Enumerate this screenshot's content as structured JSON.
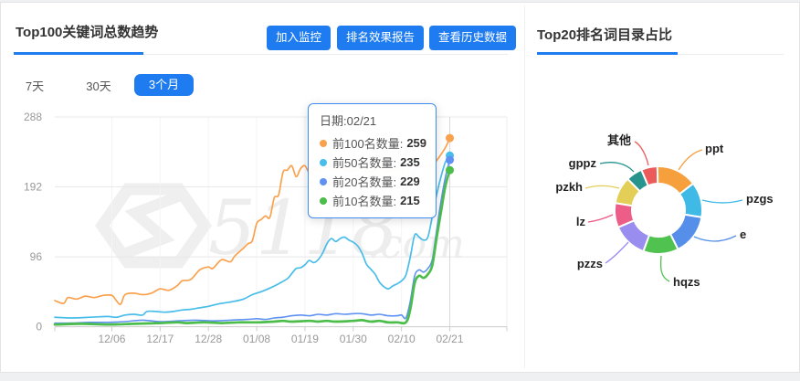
{
  "left_panel": {
    "title": "Top100关键词总数趋势",
    "buttons": [
      "加入监控",
      "排名效果报告",
      "查看历史数据"
    ],
    "tabs": [
      {
        "label": "7天",
        "active": false
      },
      {
        "label": "30天",
        "active": false
      },
      {
        "label": "3个月",
        "active": true
      }
    ],
    "watermark": "5118.com"
  },
  "right_panel": {
    "title": "Top20排名词目录占比"
  },
  "tooltip": {
    "title": "日期:02/21",
    "rows": [
      {
        "label": "前100名数量:",
        "value": "259",
        "color": "#faa14e"
      },
      {
        "label": "前50名数量:",
        "value": "235",
        "color": "#49bdea"
      },
      {
        "label": "前20名数量:",
        "value": "229",
        "color": "#5e91f2"
      },
      {
        "label": "前10名数量:",
        "value": "215",
        "color": "#4cbd4b"
      }
    ]
  },
  "colors": {
    "accent_blue": "#1f7cf0",
    "tooltip_border": "#3f8cf2"
  },
  "chart_data": [
    {
      "type": "line",
      "title": "Top100关键词总数趋势",
      "xlabel": "",
      "ylabel": "",
      "ylim": [
        0,
        288
      ],
      "y_ticks": [
        0,
        96,
        192,
        288
      ],
      "x_tick_labels": [
        "12/06",
        "12/17",
        "12/28",
        "01/08",
        "01/19",
        "01/30",
        "02/10",
        "02/21"
      ],
      "x_tick_days": [
        13,
        24,
        35,
        46,
        57,
        68,
        79,
        90
      ],
      "x_day_range": [
        0,
        103
      ],
      "hover_day": 90,
      "grid": true,
      "legend_position": "none",
      "series": [
        {
          "name": "前100名数量",
          "color": "#faa14e",
          "width": 1.7,
          "final_value": 259,
          "points": [
            [
              0,
              36
            ],
            [
              2,
              32
            ],
            [
              3,
              40
            ],
            [
              5,
              38
            ],
            [
              7,
              42
            ],
            [
              9,
              40
            ],
            [
              11,
              43
            ],
            [
              13,
              43
            ],
            [
              14,
              36
            ],
            [
              15,
              31
            ],
            [
              16,
              44
            ],
            [
              18,
              46
            ],
            [
              20,
              44
            ],
            [
              22,
              46
            ],
            [
              24,
              52
            ],
            [
              26,
              50
            ],
            [
              28,
              57
            ],
            [
              29,
              63
            ],
            [
              31,
              65
            ],
            [
              33,
              78
            ],
            [
              35,
              82
            ],
            [
              36,
              80
            ],
            [
              38,
              92
            ],
            [
              40,
              89
            ],
            [
              41,
              97
            ],
            [
              43,
              108
            ],
            [
              44,
              114
            ],
            [
              45,
              118
            ],
            [
              46,
              142
            ],
            [
              47,
              147
            ],
            [
              48,
              152
            ],
            [
              49,
              150
            ],
            [
              50,
              177
            ],
            [
              51,
              181
            ],
            [
              52,
              212
            ],
            [
              53,
              215
            ],
            [
              54,
              221
            ],
            [
              55,
              206
            ],
            [
              56,
              217
            ],
            [
              57,
              221
            ],
            [
              58,
              211
            ],
            [
              59,
              216
            ],
            [
              61,
              214
            ],
            [
              62,
              221
            ],
            [
              63,
              216
            ],
            [
              65,
              218
            ],
            [
              67,
              214
            ],
            [
              69,
              216
            ],
            [
              70,
              223
            ],
            [
              71,
              213
            ],
            [
              73,
              216
            ],
            [
              74,
              229
            ],
            [
              75,
              214
            ],
            [
              77,
              215
            ],
            [
              79,
              218
            ],
            [
              80,
              192
            ],
            [
              81,
              190
            ],
            [
              82,
              216
            ],
            [
              84,
              219
            ],
            [
              86,
              222
            ],
            [
              87,
              228
            ],
            [
              89,
              246
            ],
            [
              90,
              259
            ]
          ]
        },
        {
          "name": "前50名数量",
          "color": "#49bdea",
          "width": 1.7,
          "final_value": 235,
          "points": [
            [
              0,
              13
            ],
            [
              4,
              12
            ],
            [
              8,
              13
            ],
            [
              12,
              14
            ],
            [
              14,
              13
            ],
            [
              16,
              16
            ],
            [
              18,
              17
            ],
            [
              20,
              16
            ],
            [
              21,
              21
            ],
            [
              23,
              21
            ],
            [
              25,
              20
            ],
            [
              27,
              21
            ],
            [
              29,
              23
            ],
            [
              31,
              24
            ],
            [
              33,
              26
            ],
            [
              35,
              28
            ],
            [
              37,
              31
            ],
            [
              39,
              33
            ],
            [
              41,
              35
            ],
            [
              43,
              38
            ],
            [
              45,
              44
            ],
            [
              47,
              48
            ],
            [
              49,
              53
            ],
            [
              51,
              59
            ],
            [
              53,
              66
            ],
            [
              54,
              73
            ],
            [
              55,
              80
            ],
            [
              56,
              81
            ],
            [
              57,
              85
            ],
            [
              58,
              91
            ],
            [
              59,
              88
            ],
            [
              60,
              92
            ],
            [
              61,
              101
            ],
            [
              62,
              114
            ],
            [
              63,
              121
            ],
            [
              64,
              117
            ],
            [
              65,
              121
            ],
            [
              66,
              123
            ],
            [
              67,
              119
            ],
            [
              68,
              116
            ],
            [
              69,
              111
            ],
            [
              70,
              101
            ],
            [
              71,
              86
            ],
            [
              72,
              79
            ],
            [
              73,
              72
            ],
            [
              74,
              61
            ],
            [
              75,
              55
            ],
            [
              76,
              52
            ],
            [
              77,
              56
            ],
            [
              78,
              59
            ],
            [
              79,
              63
            ],
            [
              80,
              71
            ],
            [
              81,
              96
            ],
            [
              82,
              126
            ],
            [
              83,
              123
            ],
            [
              84,
              119
            ],
            [
              85,
              123
            ],
            [
              86,
              151
            ],
            [
              87,
              181
            ],
            [
              88,
              206
            ],
            [
              89,
              226
            ],
            [
              90,
              235
            ]
          ]
        },
        {
          "name": "前20名数量",
          "color": "#5e91f2",
          "width": 1.6,
          "final_value": 229,
          "points": [
            [
              0,
              5
            ],
            [
              4,
              5
            ],
            [
              8,
              6
            ],
            [
              12,
              6
            ],
            [
              16,
              7
            ],
            [
              20,
              9
            ],
            [
              24,
              7
            ],
            [
              28,
              8
            ],
            [
              32,
              9
            ],
            [
              36,
              8
            ],
            [
              40,
              9
            ],
            [
              44,
              10
            ],
            [
              46,
              11
            ],
            [
              48,
              10
            ],
            [
              50,
              12
            ],
            [
              52,
              13
            ],
            [
              54,
              15
            ],
            [
              56,
              16
            ],
            [
              58,
              15
            ],
            [
              60,
              17
            ],
            [
              62,
              16
            ],
            [
              64,
              18
            ],
            [
              66,
              17
            ],
            [
              68,
              18
            ],
            [
              70,
              18
            ],
            [
              72,
              16
            ],
            [
              74,
              17
            ],
            [
              76,
              15
            ],
            [
              78,
              15
            ],
            [
              79,
              16
            ],
            [
              80,
              12
            ],
            [
              81,
              35
            ],
            [
              82,
              70
            ],
            [
              83,
              78
            ],
            [
              84,
              75
            ],
            [
              85,
              80
            ],
            [
              86,
              92
            ],
            [
              87,
              132
            ],
            [
              88,
              172
            ],
            [
              89,
              205
            ],
            [
              90,
              229
            ]
          ]
        },
        {
          "name": "前10名数量",
          "color": "#4cbd4b",
          "width": 2.7,
          "final_value": 215,
          "points": [
            [
              0,
              3
            ],
            [
              6,
              4
            ],
            [
              12,
              3
            ],
            [
              18,
              4
            ],
            [
              24,
              5
            ],
            [
              28,
              6
            ],
            [
              30,
              5
            ],
            [
              34,
              6
            ],
            [
              38,
              5
            ],
            [
              42,
              6
            ],
            [
              46,
              6
            ],
            [
              50,
              7
            ],
            [
              52,
              8
            ],
            [
              54,
              7
            ],
            [
              58,
              8
            ],
            [
              60,
              7
            ],
            [
              62,
              8
            ],
            [
              64,
              7
            ],
            [
              68,
              8
            ],
            [
              70,
              9
            ],
            [
              72,
              7
            ],
            [
              74,
              8
            ],
            [
              76,
              6
            ],
            [
              78,
              6
            ],
            [
              80,
              6
            ],
            [
              81,
              24
            ],
            [
              82,
              60
            ],
            [
              83,
              70
            ],
            [
              84,
              67
            ],
            [
              85,
              72
            ],
            [
              86,
              84
            ],
            [
              87,
              122
            ],
            [
              88,
              158
            ],
            [
              89,
              193
            ],
            [
              90,
              215
            ]
          ]
        }
      ]
    },
    {
      "type": "pie",
      "title": "Top20排名词目录占比",
      "donut": true,
      "start_angle_deg": 337,
      "segments": [
        {
          "label": "其他",
          "value": 6,
          "color": "#ec5b5b"
        },
        {
          "label": "ppt",
          "value": 15,
          "color": "#f5a03c"
        },
        {
          "label": "pzgs",
          "value": 13,
          "color": "#3fb9e5"
        },
        {
          "label": "e",
          "value": 15,
          "color": "#568fea"
        },
        {
          "label": "hqzs",
          "value": 13,
          "color": "#50c24f"
        },
        {
          "label": "pzzs",
          "value": 13,
          "color": "#9a8df0"
        },
        {
          "label": "lz",
          "value": 9,
          "color": "#ec5d88"
        },
        {
          "label": "pzkh",
          "value": 10,
          "color": "#e3ce57"
        },
        {
          "label": "gppz",
          "value": 6,
          "color": "#27948e"
        }
      ]
    }
  ]
}
